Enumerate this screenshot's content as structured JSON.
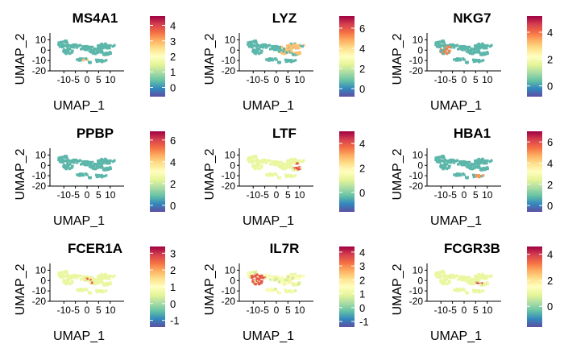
{
  "chart_data": [
    {
      "type": "scatter",
      "title": "MS4A1",
      "xlabel": "UMAP_1",
      "ylabel": "UMAP_2",
      "xticks": [
        "-10",
        "-5",
        "0",
        "5",
        "10"
      ],
      "yticks": [
        "10",
        "0",
        "-10",
        "-20"
      ],
      "legend_ticks": [
        "4",
        "3",
        "2",
        "1",
        "0"
      ],
      "legend_range": [
        -0.6,
        4.6
      ],
      "hot": {
        "x": [
          -3,
          1
        ],
        "y": [
          -11,
          -9
        ],
        "value": 2.8
      }
    },
    {
      "type": "scatter",
      "title": "LYZ",
      "xlabel": "UMAP_1",
      "ylabel": "UMAP_2",
      "xticks": [
        "-10",
        "-5",
        "0",
        "5",
        "10"
      ],
      "yticks": [
        "10",
        "0",
        "-10",
        "-20"
      ],
      "legend_ticks": [
        "6",
        "4",
        "2",
        "0"
      ],
      "legend_range": [
        -0.8,
        7.2
      ],
      "hot": {
        "x": [
          2,
          12
        ],
        "y": [
          -4,
          6
        ],
        "value": 4.5
      }
    },
    {
      "type": "scatter",
      "title": "NKG7",
      "xlabel": "UMAP_1",
      "ylabel": "UMAP_2",
      "xticks": [
        "-10",
        "-5",
        "0",
        "5",
        "10"
      ],
      "yticks": [
        "10",
        "0",
        "-10",
        "-20"
      ],
      "legend_ticks": [
        "4",
        "2",
        "0"
      ],
      "legend_range": [
        -0.8,
        5.2
      ],
      "hot": {
        "x": [
          -10,
          -5
        ],
        "y": [
          -6,
          4
        ],
        "value": 3.8
      }
    },
    {
      "type": "scatter",
      "title": "PPBP",
      "xlabel": "UMAP_1",
      "ylabel": "UMAP_2",
      "xticks": [
        "-10",
        "-5",
        "0",
        "5",
        "10"
      ],
      "yticks": [
        "10",
        "0",
        "-10",
        "-20"
      ],
      "legend_ticks": [
        "6",
        "4",
        "2",
        "0"
      ],
      "legend_range": [
        -0.6,
        6.8
      ],
      "hot": null
    },
    {
      "type": "scatter",
      "title": "LTF",
      "xlabel": "UMAP_1",
      "ylabel": "UMAP_2",
      "xticks": [
        "-10",
        "-5",
        "0",
        "5",
        "10"
      ],
      "yticks": [
        "10",
        "0",
        "-10",
        "-20"
      ],
      "legend_ticks": [
        "4",
        "2",
        "0"
      ],
      "legend_range": [
        -1.6,
        5
      ],
      "hot": {
        "x": [
          7,
          11
        ],
        "y": [
          -4,
          2
        ],
        "value": 4
      }
    },
    {
      "type": "scatter",
      "title": "HBA1",
      "xlabel": "UMAP_1",
      "ylabel": "UMAP_2",
      "xticks": [
        "-10",
        "-5",
        "0",
        "5",
        "10"
      ],
      "yticks": [
        "10",
        "0",
        "-10",
        "-20"
      ],
      "legend_ticks": [
        "6",
        "4",
        "2",
        "0"
      ],
      "legend_range": [
        -0.6,
        7
      ],
      "hot": {
        "x": [
          5,
          10
        ],
        "y": [
          -12,
          -8
        ],
        "value": 5
      }
    },
    {
      "type": "scatter",
      "title": "FCER1A",
      "xlabel": "UMAP_1",
      "ylabel": "UMAP_2",
      "xticks": [
        "-10",
        "-5",
        "0",
        "5",
        "10"
      ],
      "yticks": [
        "10",
        "0",
        "-10",
        "-20"
      ],
      "legend_ticks": [
        "3",
        "2",
        "1",
        "0",
        "-1"
      ],
      "legend_range": [
        -1.4,
        3.4
      ],
      "hot": {
        "x": [
          -1,
          3
        ],
        "y": [
          -3,
          2
        ],
        "value": 2.5
      }
    },
    {
      "type": "scatter",
      "title": "IL7R",
      "xlabel": "UMAP_1",
      "ylabel": "UMAP_2",
      "xticks": [
        "-10",
        "-5",
        "0",
        "5",
        "10"
      ],
      "yticks": [
        "10",
        "0",
        "-10",
        "-20"
      ],
      "legend_ticks": [
        "4",
        "3",
        "2",
        "1",
        "0",
        "-1"
      ],
      "legend_range": [
        -1.4,
        4.4
      ],
      "hot": {
        "x": [
          -11,
          -5
        ],
        "y": [
          -6,
          6
        ],
        "value": 3.5
      }
    },
    {
      "type": "scatter",
      "title": "FCGR3B",
      "xlabel": "UMAP_1",
      "ylabel": "UMAP_2",
      "xticks": [
        "-10",
        "-5",
        "0",
        "5",
        "10"
      ],
      "yticks": [
        "10",
        "0",
        "-10",
        "-20"
      ],
      "legend_ticks": [
        "4",
        "2",
        "0"
      ],
      "legend_range": [
        -1.6,
        4.6
      ],
      "hot": {
        "x": [
          5,
          9
        ],
        "y": [
          -4,
          -1
        ],
        "value": 4
      }
    }
  ],
  "colors": {
    "spectral": [
      "#5e4fa2",
      "#3288bd",
      "#66c2a5",
      "#abdda4",
      "#e6f598",
      "#ffffbf",
      "#fee08b",
      "#fdae61",
      "#f46d43",
      "#d53e4f",
      "#9e0142"
    ],
    "baseline": "#4577b4",
    "legend_bg": "#ffffff"
  }
}
